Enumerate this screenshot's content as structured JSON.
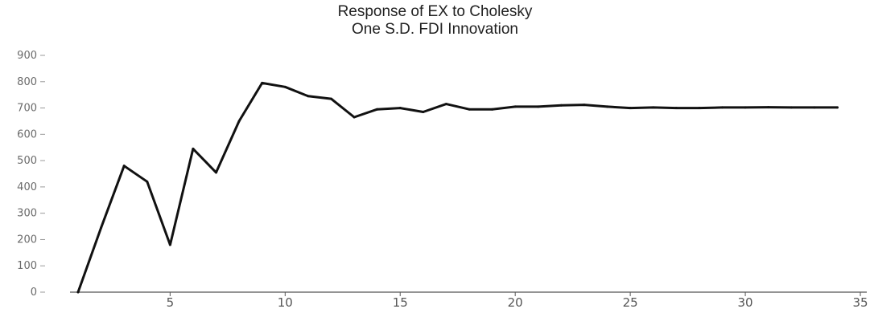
{
  "chart_data": {
    "type": "line",
    "title": [
      "Response of EX to Cholesky",
      "One S.D. FDI Innovation"
    ],
    "xlabel": "",
    "ylabel": "",
    "xlim": [
      1,
      35
    ],
    "ylim": [
      0,
      900
    ],
    "x_ticks": [
      5,
      10,
      15,
      20,
      25,
      30,
      35
    ],
    "x_tick_labels": [
      "5",
      "10",
      "15",
      "20",
      "25",
      "30",
      "35"
    ],
    "y_ticks": [
      0,
      100,
      200,
      300,
      400,
      500,
      600,
      700,
      800,
      900
    ],
    "y_tick_labels": [
      "0",
      "100",
      "200",
      "300",
      "400",
      "500",
      "600",
      "700",
      "800",
      "900"
    ],
    "grid": false,
    "legend": "none",
    "line_color": "#111111",
    "series": [
      {
        "x": [
          1,
          2,
          3,
          4,
          5,
          6,
          7,
          8,
          9,
          10,
          11,
          12,
          13,
          14,
          15,
          16,
          17,
          18,
          19,
          20,
          21,
          22,
          23,
          24,
          25,
          26,
          27,
          28,
          29,
          30,
          31,
          32,
          33,
          34
        ],
        "values": [
          0,
          245,
          480,
          420,
          180,
          545,
          455,
          650,
          795,
          780,
          745,
          735,
          665,
          695,
          700,
          685,
          715,
          695,
          695,
          705,
          705,
          710,
          712,
          705,
          700,
          702,
          700,
          700,
          702,
          702,
          703,
          702,
          702,
          702
        ]
      }
    ]
  }
}
